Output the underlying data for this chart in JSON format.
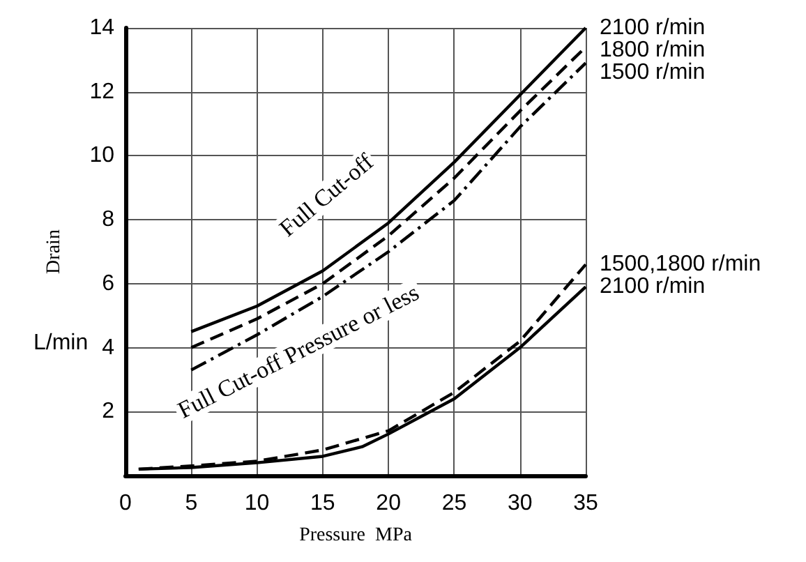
{
  "chart_data": {
    "type": "line",
    "xlabel": "Pressure  MPa",
    "ylabel": "Drain",
    "annotations": [
      "L/min",
      "Full Cut-off",
      "Full Cut-off Pressure or less"
    ],
    "xlim": [
      0,
      35
    ],
    "xticks": [
      0,
      5,
      10,
      15,
      20,
      25,
      30,
      35
    ],
    "ylim": [
      0,
      14
    ],
    "yticks": [
      {
        "value": 0,
        "label": null
      },
      2,
      4,
      6,
      8,
      10,
      12,
      14
    ],
    "grid": true,
    "legend": false,
    "marker": "none",
    "series": [
      {
        "name": "2100 r/min",
        "color": "#000000",
        "line_style": "solid",
        "x": [
          5,
          10,
          15,
          20,
          25,
          30,
          35
        ],
        "values": [
          4.5,
          5.3,
          6.4,
          7.9,
          9.8,
          11.9,
          14
        ]
      },
      {
        "name": "1800 r/min",
        "color": "#000000",
        "line_style": "dashed",
        "x": [
          5,
          10,
          15,
          20,
          25,
          30,
          35
        ],
        "values": [
          4.0,
          4.9,
          6.0,
          7.5,
          9.3,
          11.4,
          13.4
        ]
      },
      {
        "name": "1500 r/min",
        "color": "#000000",
        "line_style": "dashdot",
        "x": [
          5,
          10,
          15,
          20,
          25,
          30,
          35
        ],
        "values": [
          3.3,
          4.4,
          5.6,
          7.0,
          8.6,
          10.9,
          12.9
        ]
      },
      {
        "name": "1500,1800 r/min",
        "color": "#000000",
        "line_style": "dashed",
        "x": [
          1,
          5,
          10,
          15,
          20,
          25,
          30,
          35
        ],
        "values": [
          0.2,
          0.3,
          0.45,
          0.8,
          1.4,
          2.6,
          4.2,
          6.6
        ]
      },
      {
        "name": "2100 r/min",
        "color": "#000000",
        "line_style": "solid",
        "x": [
          1,
          5,
          10,
          15,
          18,
          20,
          25,
          30,
          35
        ],
        "values": [
          0.2,
          0.25,
          0.4,
          0.6,
          0.9,
          1.3,
          2.4,
          4.0,
          5.9
        ]
      }
    ]
  }
}
